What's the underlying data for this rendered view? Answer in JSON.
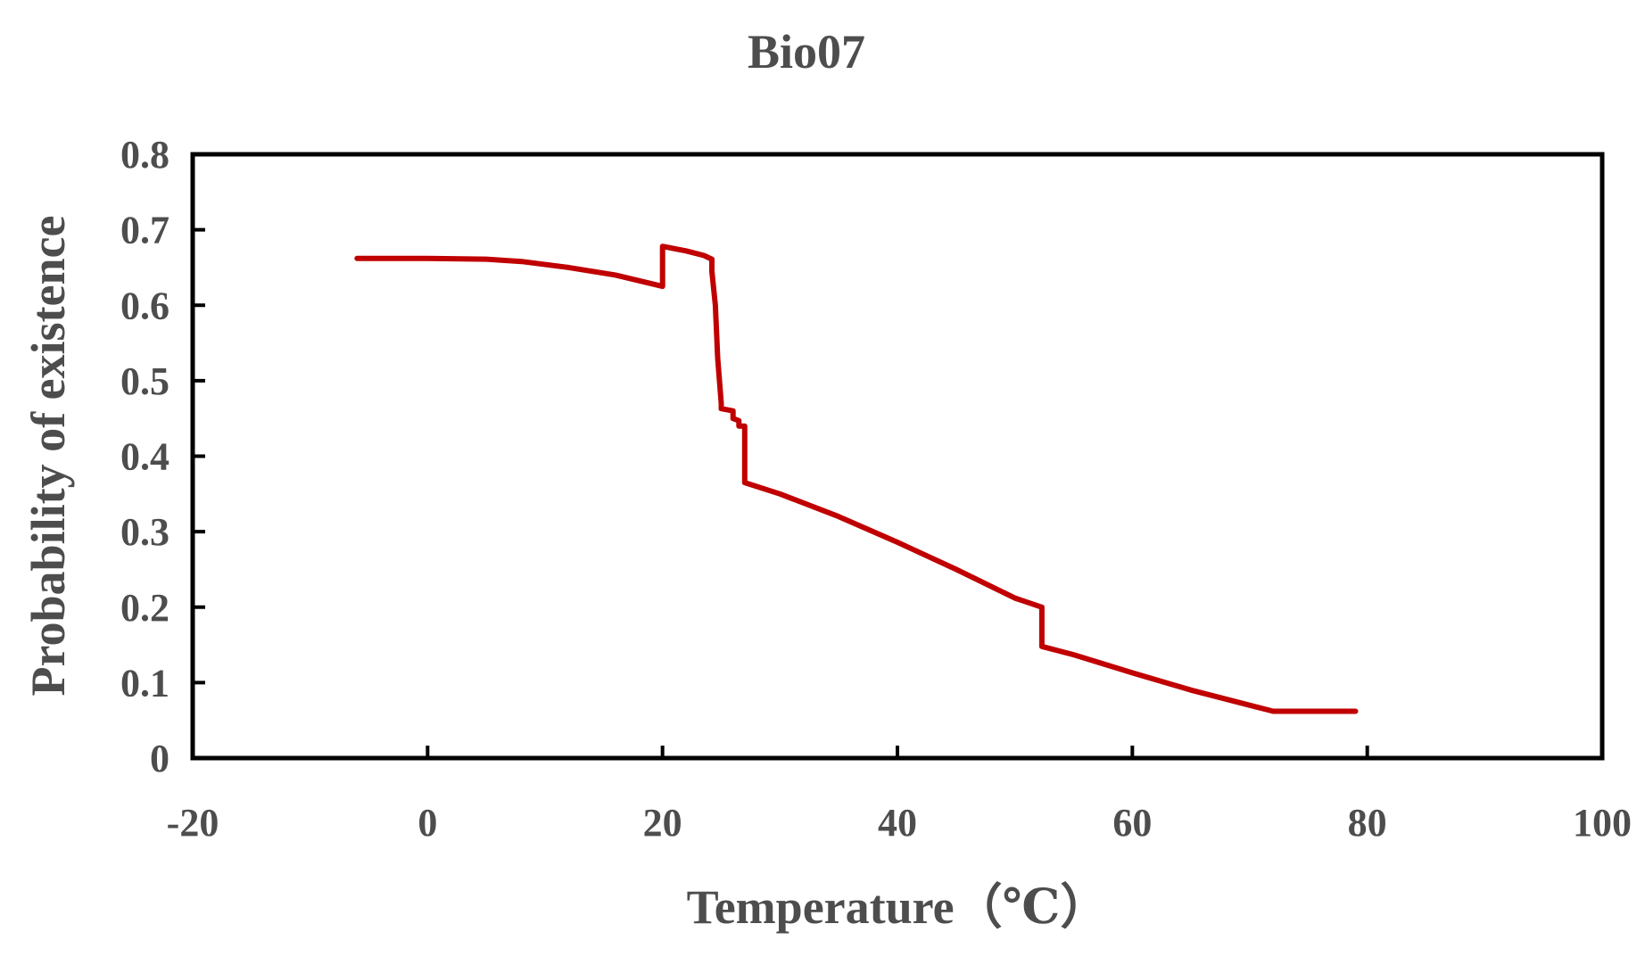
{
  "chart_data": {
    "type": "line",
    "title": "Bio07",
    "xlabel": "Temperature（℃）",
    "ylabel": "Probability of existence",
    "xlim": [
      -20,
      100
    ],
    "ylim": [
      0,
      0.8
    ],
    "x_ticks": [
      "-20",
      "0",
      "20",
      "40",
      "60",
      "80",
      "100"
    ],
    "y_ticks": [
      "0",
      "0.1",
      "0.2",
      "0.3",
      "0.4",
      "0.5",
      "0.6",
      "0.7",
      "0.8"
    ],
    "grid": false,
    "legend": "none",
    "series": [
      {
        "name": "Bio07",
        "color": "#c00000",
        "x": [
          -6,
          0,
          5,
          8,
          12,
          16,
          20,
          20,
          22,
          23.5,
          24.2,
          24.2,
          24.5,
          24.7,
          25.0,
          25.0,
          26.0,
          26.0,
          26.5,
          26.5,
          27.0,
          27.0,
          30,
          35,
          40,
          45,
          50,
          52.3,
          52.3,
          55,
          60,
          65,
          70,
          72,
          79
        ],
        "values": [
          0.662,
          0.662,
          0.661,
          0.658,
          0.65,
          0.64,
          0.625,
          0.678,
          0.672,
          0.666,
          0.661,
          0.645,
          0.6,
          0.53,
          0.47,
          0.463,
          0.46,
          0.45,
          0.447,
          0.44,
          0.44,
          0.365,
          0.35,
          0.32,
          0.286,
          0.25,
          0.212,
          0.2,
          0.148,
          0.137,
          0.113,
          0.09,
          0.07,
          0.062,
          0.062
        ]
      }
    ]
  }
}
